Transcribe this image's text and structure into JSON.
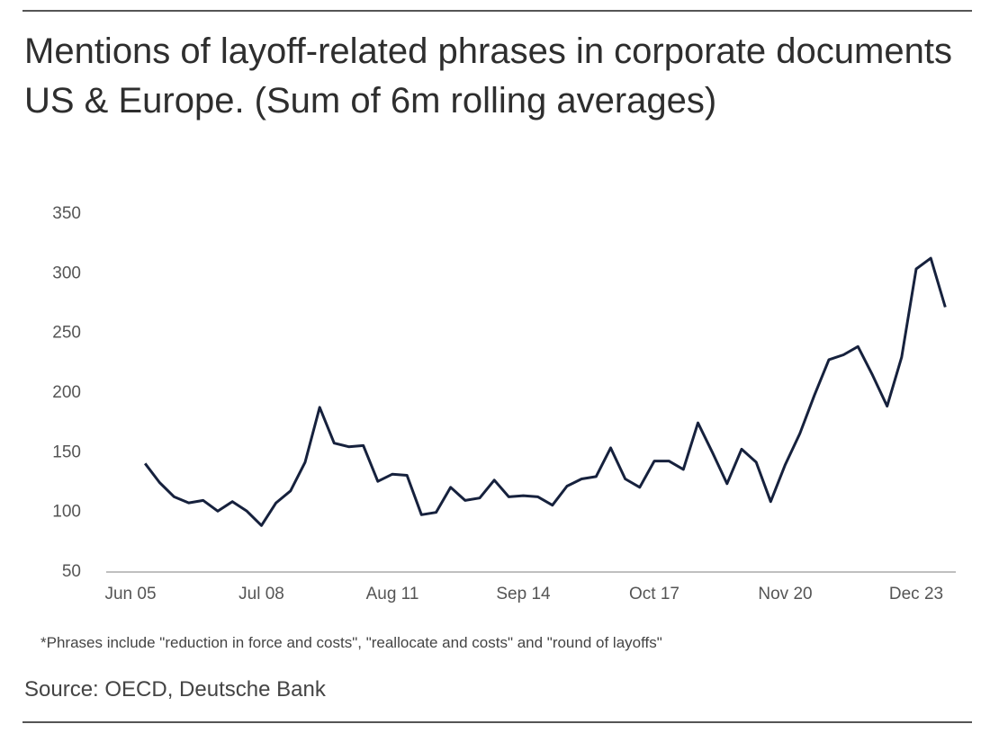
{
  "chart_data": {
    "type": "line",
    "title": "Mentions of layoff-related phrases  in corporate documents US & Europe. (Sum of 6m rolling averages)",
    "note": "*Phrases include \"reduction in force and costs\", \"reallocate and costs\" and \"round of layoffs\"",
    "source": "Source: OECD, Deutsche Bank",
    "categories": [
      "Jun 05",
      null,
      null,
      null,
      null,
      null,
      null,
      null,
      null,
      "Jul 08",
      null,
      null,
      null,
      null,
      null,
      null,
      null,
      null,
      "Aug 11",
      null,
      null,
      null,
      null,
      null,
      null,
      null,
      null,
      "Sep 14",
      null,
      null,
      null,
      null,
      null,
      null,
      null,
      null,
      "Oct 17",
      null,
      null,
      null,
      null,
      null,
      null,
      null,
      null,
      "Nov 20",
      null,
      null,
      null,
      null,
      null,
      null,
      null,
      null,
      "Dec 23",
      null,
      null
    ],
    "series": [
      {
        "color": "#16213d",
        "values": [
          null,
          141,
          125,
          113,
          108,
          110,
          101,
          109,
          101,
          89,
          108,
          118,
          142,
          188,
          158,
          155,
          156,
          126,
          132,
          131,
          98,
          100,
          121,
          110,
          112,
          127,
          113,
          114,
          113,
          106,
          122,
          128,
          130,
          154,
          128,
          121,
          143,
          143,
          136,
          175,
          150,
          124,
          153,
          142,
          109,
          140,
          166,
          198,
          228,
          232,
          239,
          215,
          189,
          230,
          304,
          313,
          272
        ]
      }
    ],
    "ylim": [
      50,
      350
    ],
    "yticks": [
      50,
      100,
      150,
      200,
      250,
      300,
      350
    ],
    "grid": false
  }
}
